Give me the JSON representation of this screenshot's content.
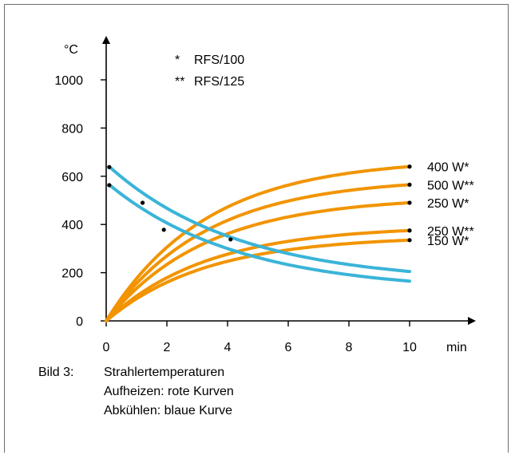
{
  "chart_data": {
    "type": "line",
    "ylabel": "°C",
    "xlabel": "min",
    "xlim": [
      0,
      10
    ],
    "ylim": [
      0,
      1000
    ],
    "x_ticks": [
      "0",
      "2",
      "4",
      "6",
      "8",
      "10"
    ],
    "y_ticks": [
      "0",
      "200",
      "400",
      "600",
      "800",
      "1000"
    ],
    "grid": false,
    "notes": [
      {
        "mark": "*",
        "text": "RFS/100"
      },
      {
        "mark": "**",
        "text": "RFS/125"
      }
    ],
    "series": [
      {
        "name": "400 W*",
        "kind": "heating",
        "color": "#f29400",
        "final": 640,
        "tau": 3.3
      },
      {
        "name": "500 W**",
        "kind": "heating",
        "color": "#f29400",
        "final": 565,
        "tau": 3.3
      },
      {
        "name": "250 W*",
        "kind": "heating",
        "color": "#f29400",
        "final": 490,
        "tau": 3.3
      },
      {
        "name": "250 W**",
        "kind": "heating",
        "color": "#f29400",
        "final": 375,
        "tau": 3.3
      },
      {
        "name": "150 W*",
        "kind": "heating",
        "color": "#f29400",
        "final": 335,
        "tau": 3.3
      },
      {
        "kind": "cooling",
        "color": "#3ab4d8",
        "start": 640,
        "end": 205
      },
      {
        "kind": "cooling",
        "color": "#3ab4d8",
        "start": 565,
        "end": 165
      }
    ],
    "points": [
      {
        "x": 0.1,
        "y": 638
      },
      {
        "x": 0.1,
        "y": 563
      },
      {
        "x": 1.2,
        "y": 490
      },
      {
        "x": 1.9,
        "y": 378
      },
      {
        "x": 4.1,
        "y": 338
      },
      {
        "x": 10,
        "y": 640
      },
      {
        "x": 10,
        "y": 565
      },
      {
        "x": 10,
        "y": 490
      },
      {
        "x": 10,
        "y": 375
      },
      {
        "x": 10,
        "y": 335
      }
    ]
  },
  "caption": {
    "label": "Bild 3:",
    "lines": [
      "Strahlertemperaturen",
      "Aufheizen: rote Kurven",
      "Abkühlen: blaue Kurve"
    ]
  }
}
